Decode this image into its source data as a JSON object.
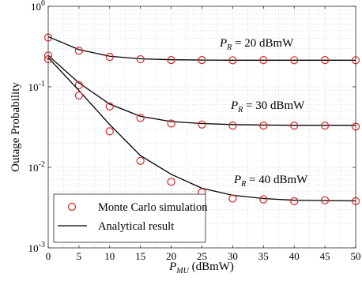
{
  "chart_data": {
    "type": "line",
    "xlabel": {
      "base": "P",
      "sub": "MU",
      "rest": " (dBmW)"
    },
    "ylabel": "Outage Probability",
    "x_ticks": [
      "0",
      "5",
      "10",
      "15",
      "20",
      "25",
      "30",
      "35",
      "40",
      "45",
      "50"
    ],
    "y_ticks": [
      {
        "base": "10",
        "exp": "0"
      },
      {
        "base": "10",
        "exp": "-1"
      },
      {
        "base": "10",
        "exp": "-2"
      },
      {
        "base": "10",
        "exp": "-3"
      }
    ],
    "xlim": [
      0,
      50
    ],
    "ylim": [
      0.001,
      1
    ],
    "yscale": "log",
    "grid": "minor dotted",
    "legend_position": "bottom-left",
    "legend": {
      "sim": "Monte Carlo simulation",
      "ana": "Analytical result"
    },
    "colors": {
      "marker": "#d62728",
      "line": "#000000"
    },
    "series": [
      {
        "label": {
          "base": "P",
          "sub": "R",
          "rest": " = 20 dBmW"
        },
        "analytical": {
          "x": [
            0,
            5,
            10,
            15,
            20,
            25,
            30,
            35,
            40,
            45,
            50
          ],
          "y": [
            0.42,
            0.29,
            0.24,
            0.223,
            0.217,
            0.215,
            0.214,
            0.214,
            0.214,
            0.214,
            0.214
          ]
        },
        "simulation": {
          "x": [
            0,
            5,
            10,
            15,
            20,
            25,
            30,
            35,
            40,
            45,
            50
          ],
          "y": [
            0.41,
            0.28,
            0.235,
            0.22,
            0.215,
            0.215,
            0.214,
            0.215,
            0.214,
            0.215,
            0.214
          ]
        }
      },
      {
        "label": {
          "base": "P",
          "sub": "R",
          "rest": " = 30 dBmW"
        },
        "analytical": {
          "x": [
            0,
            5,
            10,
            15,
            20,
            25,
            30,
            35,
            40,
            45,
            50
          ],
          "y": [
            0.245,
            0.112,
            0.061,
            0.043,
            0.037,
            0.035,
            0.034,
            0.0335,
            0.0333,
            0.0333,
            0.0333
          ]
        },
        "simulation": {
          "x": [
            0,
            5,
            10,
            15,
            20,
            25,
            30,
            35,
            40,
            45,
            50
          ],
          "y": [
            0.245,
            0.105,
            0.057,
            0.041,
            0.035,
            0.034,
            0.033,
            0.033,
            0.033,
            0.033,
            0.032
          ]
        }
      },
      {
        "label": {
          "base": "P",
          "sub": "R",
          "rest": " = 40 dBmW"
        },
        "analytical": {
          "x": [
            0,
            5,
            10,
            15,
            20,
            25,
            30,
            35,
            40,
            45,
            50
          ],
          "y": [
            0.23,
            0.09,
            0.034,
            0.014,
            0.0082,
            0.0055,
            0.0045,
            0.0041,
            0.0039,
            0.00385,
            0.00383
          ]
        },
        "simulation": {
          "x": [
            0,
            5,
            10,
            15,
            20,
            25,
            30,
            35,
            40,
            45,
            50
          ],
          "y": [
            0.22,
            0.078,
            0.028,
            0.012,
            0.0066,
            0.0049,
            0.0041,
            0.004,
            0.0038,
            0.0039,
            0.0038
          ]
        }
      }
    ]
  }
}
